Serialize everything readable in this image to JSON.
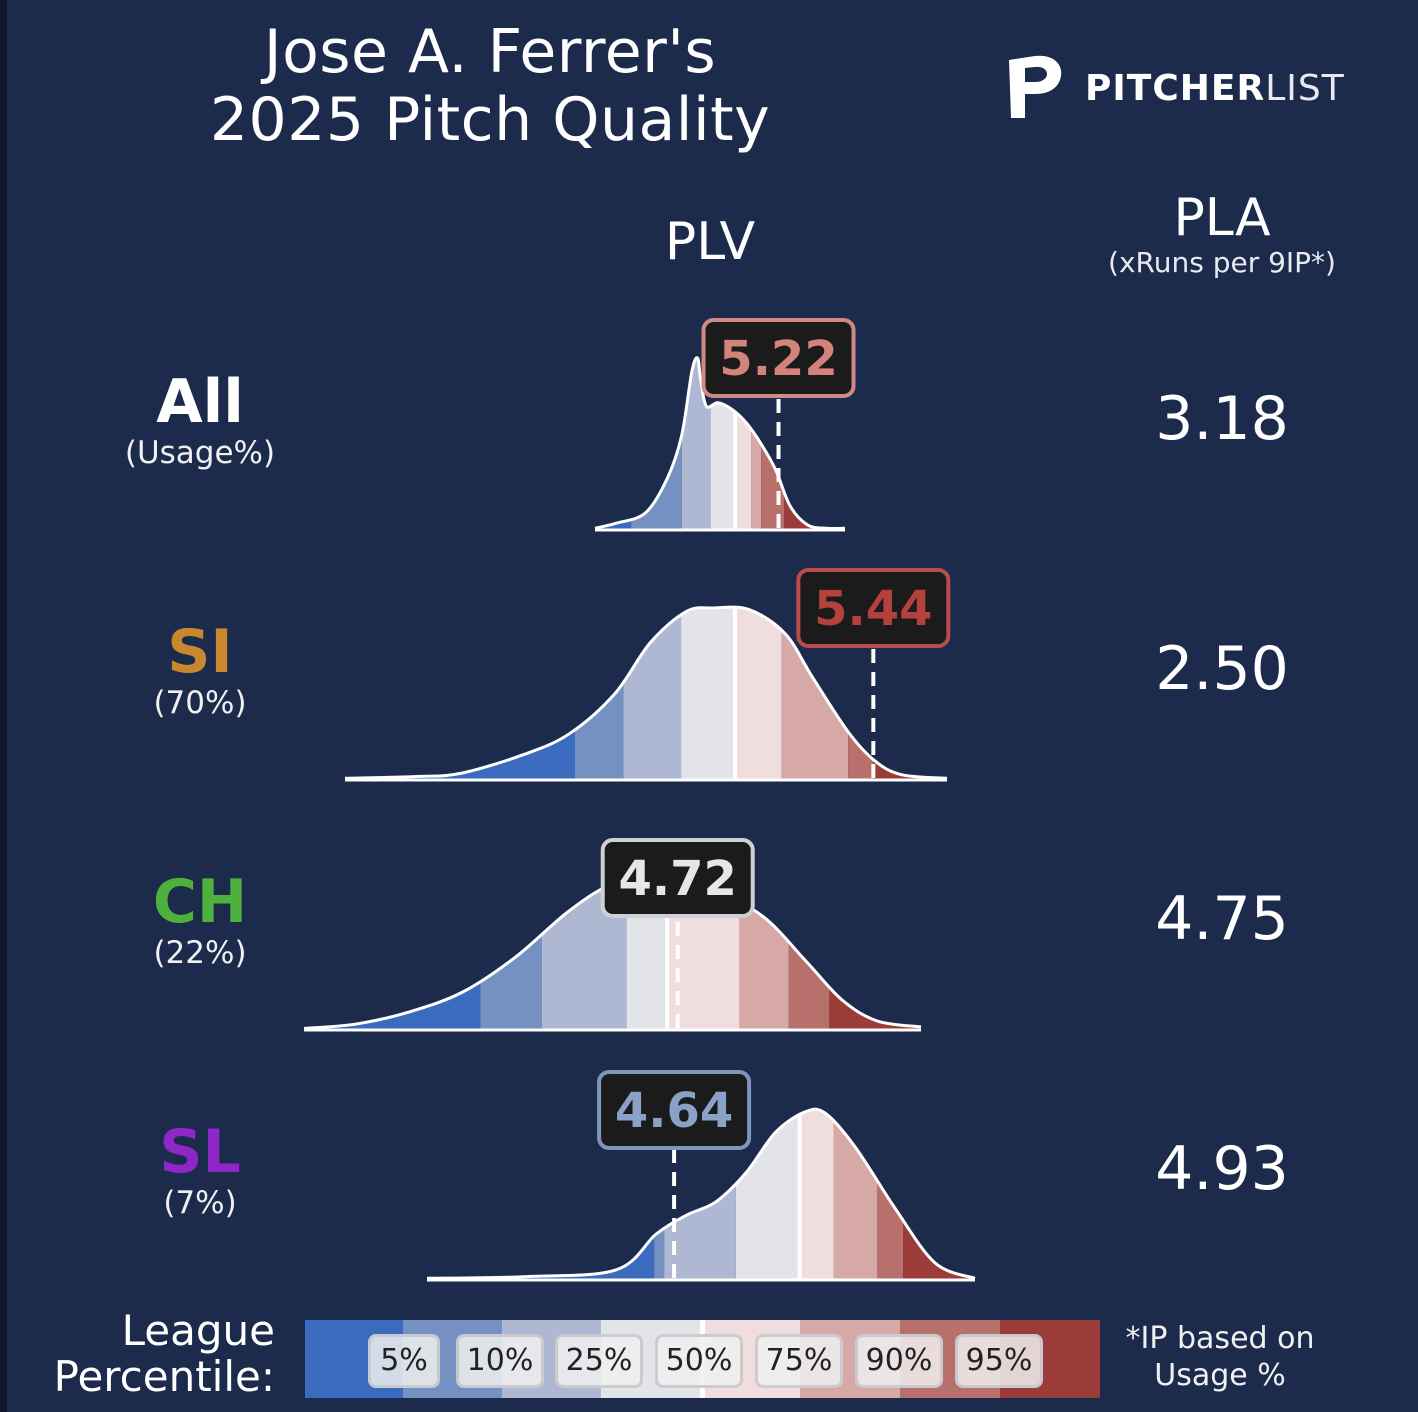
{
  "title_line1": "Jose A. Ferrer's",
  "title_line2": "2025 Pitch Quality",
  "logo": {
    "bold": "PITCHER",
    "light": "LIST",
    "icon": "pitcherlist-p-logo"
  },
  "headers": {
    "plv": "PLV",
    "pla": "PLA",
    "pla_sub": "(xRuns per 9IP*)"
  },
  "rows": [
    {
      "name": "All",
      "usage": "(Usage%)",
      "name_color": "#ffffff",
      "plv_label": "5.22",
      "pla": "3.18"
    },
    {
      "name": "SI",
      "usage": "(70%)",
      "name_color": "#c9872e",
      "plv_label": "5.44",
      "pla": "2.50"
    },
    {
      "name": "CH",
      "usage": "(22%)",
      "name_color": "#4fb13d",
      "plv_label": "4.72",
      "pla": "4.75"
    },
    {
      "name": "SL",
      "usage": "(7%)",
      "name_color": "#8e26c8",
      "plv_label": "4.64",
      "pla": "4.93"
    }
  ],
  "legend": {
    "label_line1": "League",
    "label_line2": "Percentile:",
    "pills": [
      "5%",
      "10%",
      "25%",
      "50%",
      "75%",
      "90%",
      "95%"
    ],
    "note_line1": "*IP based on",
    "note_line2": "Usage %"
  },
  "colors": {
    "background": "#1c2a4c",
    "percentile_bands": [
      "#3a6bbf",
      "#7591c2",
      "#aeb8d2",
      "#e3e4ea",
      "#efdedd",
      "#d6a9a6",
      "#b8706c",
      "#9c3c38"
    ]
  },
  "chart_data": [
    {
      "type": "area",
      "title": "All",
      "value": 5.22,
      "value_box_color": "#d08a85",
      "value_text_color": "#d4837c",
      "band_edges": [
        4.2,
        4.55,
        4.75,
        4.92,
        5.03,
        5.1,
        5.26
      ],
      "x_range": [
        3.95,
        5.68
      ],
      "curve": [
        [
          3.95,
          0.01
        ],
        [
          4.1,
          0.04
        ],
        [
          4.3,
          0.1
        ],
        [
          4.45,
          0.3
        ],
        [
          4.55,
          0.55
        ],
        [
          4.62,
          0.92
        ],
        [
          4.66,
          1.0
        ],
        [
          4.68,
          0.88
        ],
        [
          4.72,
          0.72
        ],
        [
          4.8,
          0.74
        ],
        [
          4.9,
          0.7
        ],
        [
          5.0,
          0.62
        ],
        [
          5.1,
          0.5
        ],
        [
          5.2,
          0.35
        ],
        [
          5.3,
          0.14
        ],
        [
          5.42,
          0.03
        ],
        [
          5.55,
          0.01
        ],
        [
          5.68,
          0.01
        ]
      ]
    },
    {
      "type": "area",
      "title": "SI",
      "value": 5.44,
      "value_box_color": "#b94c49",
      "value_text_color": "#b5413c",
      "band_edges": [
        3.78,
        4.05,
        4.37,
        4.67,
        4.93,
        5.3,
        5.44
      ],
      "x_range": [
        2.5,
        5.85
      ],
      "curve": [
        [
          2.5,
          0.01
        ],
        [
          2.9,
          0.02
        ],
        [
          3.15,
          0.04
        ],
        [
          3.5,
          0.15
        ],
        [
          3.75,
          0.27
        ],
        [
          4.0,
          0.5
        ],
        [
          4.2,
          0.8
        ],
        [
          4.4,
          0.98
        ],
        [
          4.55,
          1.0
        ],
        [
          4.75,
          0.99
        ],
        [
          4.95,
          0.85
        ],
        [
          5.1,
          0.6
        ],
        [
          5.3,
          0.28
        ],
        [
          5.45,
          0.11
        ],
        [
          5.6,
          0.03
        ],
        [
          5.85,
          0.01
        ]
      ]
    },
    {
      "type": "area",
      "title": "CH",
      "value": 4.72,
      "value_box_color": "#cfd0d6",
      "value_text_color": "#e6e6ea",
      "band_edges": [
        3.6,
        3.95,
        4.43,
        4.66,
        5.07,
        5.35,
        5.58
      ],
      "x_range": [
        2.6,
        6.1
      ],
      "curve": [
        [
          2.6,
          0.01
        ],
        [
          2.9,
          0.04
        ],
        [
          3.2,
          0.12
        ],
        [
          3.5,
          0.25
        ],
        [
          3.8,
          0.48
        ],
        [
          4.1,
          0.78
        ],
        [
          4.35,
          0.96
        ],
        [
          4.6,
          1.0
        ],
        [
          4.9,
          0.93
        ],
        [
          5.2,
          0.75
        ],
        [
          5.45,
          0.45
        ],
        [
          5.65,
          0.2
        ],
        [
          5.85,
          0.06
        ],
        [
          6.1,
          0.02
        ]
      ]
    },
    {
      "type": "area",
      "title": "SL",
      "value": 4.64,
      "value_box_color": "#7f95bb",
      "value_text_color": "#8ca1c8",
      "band_edges": [
        4.54,
        4.59,
        4.95,
        5.27,
        5.44,
        5.66,
        5.79
      ],
      "x_range": [
        3.4,
        6.15
      ],
      "curve": [
        [
          3.4,
          0.01
        ],
        [
          3.9,
          0.02
        ],
        [
          4.35,
          0.06
        ],
        [
          4.55,
          0.27
        ],
        [
          4.7,
          0.38
        ],
        [
          4.85,
          0.46
        ],
        [
          5.0,
          0.63
        ],
        [
          5.15,
          0.87
        ],
        [
          5.3,
          0.99
        ],
        [
          5.4,
          0.98
        ],
        [
          5.55,
          0.78
        ],
        [
          5.75,
          0.42
        ],
        [
          5.95,
          0.1
        ],
        [
          6.15,
          0.01
        ]
      ]
    }
  ]
}
